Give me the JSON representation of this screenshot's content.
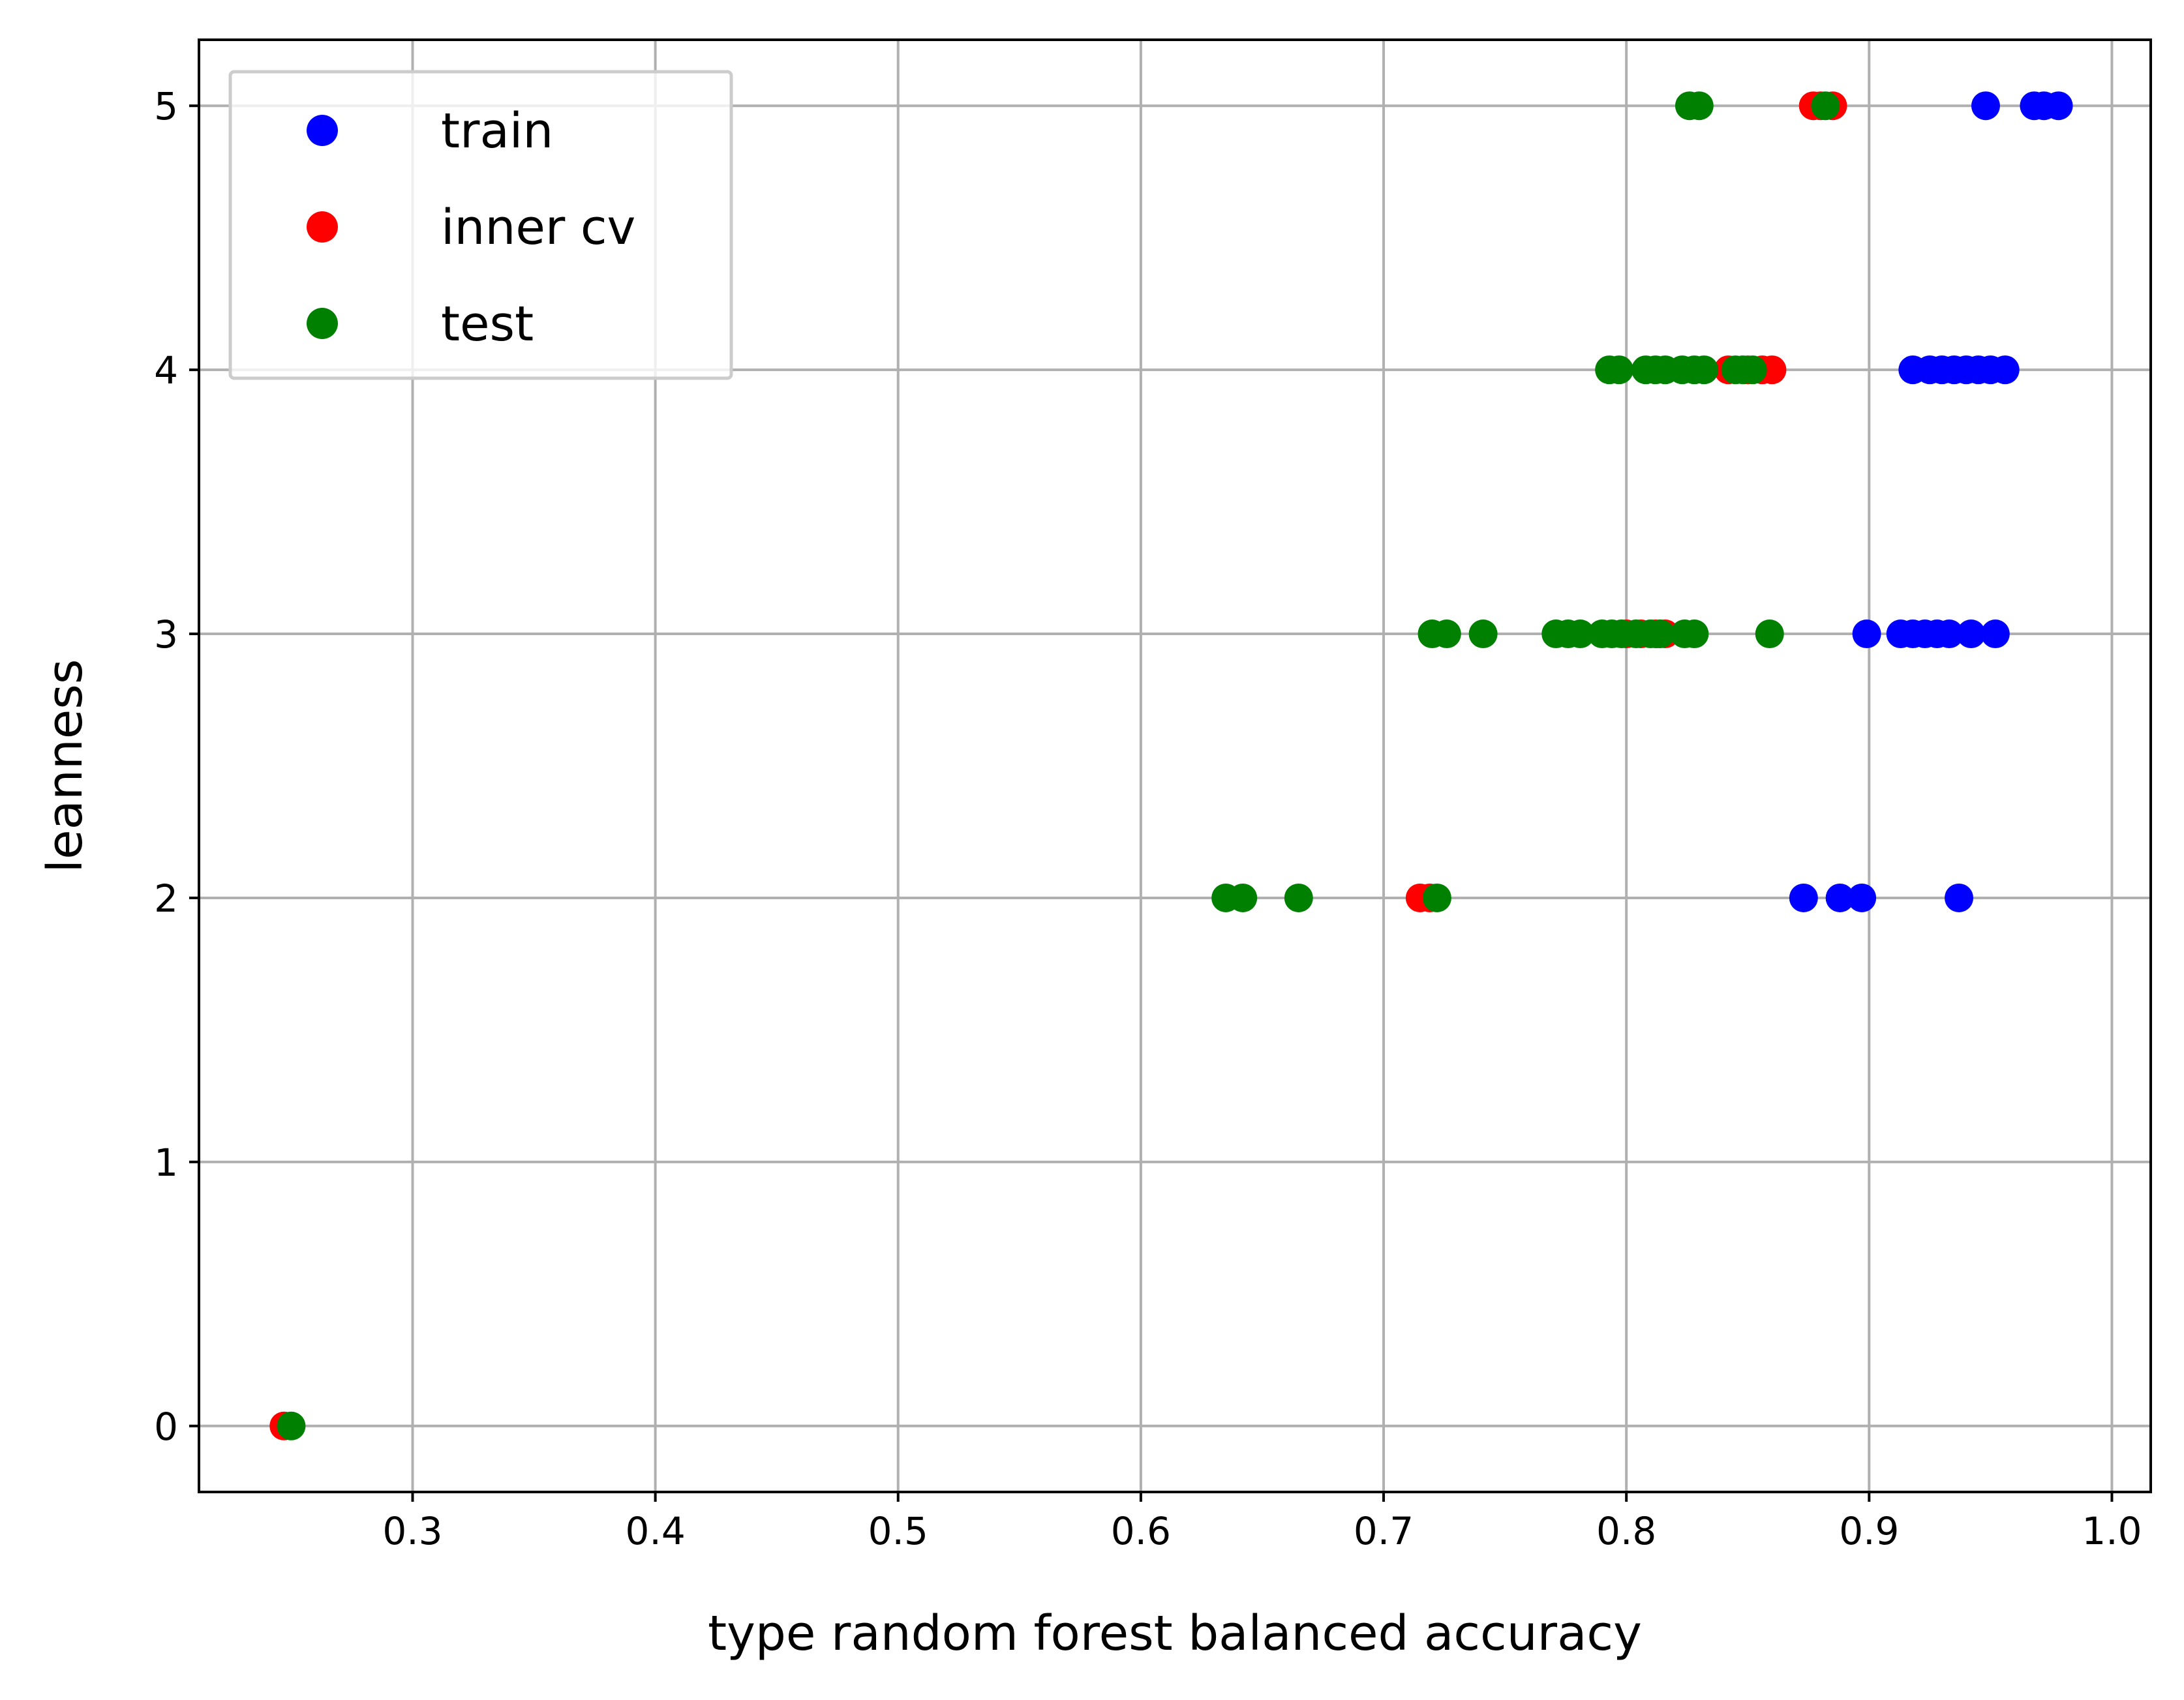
{
  "chart_data": {
    "type": "scatter",
    "title": "",
    "xlabel": "type random forest balanced accuracy",
    "ylabel": "leanness",
    "xlim": [
      0.212,
      1.016
    ],
    "ylim": [
      -0.25,
      5.25
    ],
    "xticks": [
      0.3,
      0.4,
      0.5,
      0.6,
      0.7,
      0.8,
      0.9,
      1.0
    ],
    "xtick_labels": [
      "0.3",
      "0.4",
      "0.5",
      "0.6",
      "0.7",
      "0.8",
      "0.9",
      "1.0"
    ],
    "yticks": [
      0,
      1,
      2,
      3,
      4,
      5
    ],
    "ytick_labels": [
      "0",
      "1",
      "2",
      "3",
      "4",
      "5"
    ],
    "grid": true,
    "legend_position": "top-left",
    "series": [
      {
        "name": "train",
        "color": "#0000ff",
        "points": [
          {
            "x": 0.948,
            "y": 5
          },
          {
            "x": 0.968,
            "y": 5
          },
          {
            "x": 0.972,
            "y": 5
          },
          {
            "x": 0.978,
            "y": 5
          },
          {
            "x": 0.918,
            "y": 4
          },
          {
            "x": 0.925,
            "y": 4
          },
          {
            "x": 0.93,
            "y": 4
          },
          {
            "x": 0.935,
            "y": 4
          },
          {
            "x": 0.94,
            "y": 4
          },
          {
            "x": 0.945,
            "y": 4
          },
          {
            "x": 0.95,
            "y": 4
          },
          {
            "x": 0.956,
            "y": 4
          },
          {
            "x": 0.899,
            "y": 3
          },
          {
            "x": 0.913,
            "y": 3
          },
          {
            "x": 0.918,
            "y": 3
          },
          {
            "x": 0.923,
            "y": 3
          },
          {
            "x": 0.928,
            "y": 3
          },
          {
            "x": 0.933,
            "y": 3
          },
          {
            "x": 0.942,
            "y": 3
          },
          {
            "x": 0.952,
            "y": 3
          },
          {
            "x": 0.873,
            "y": 2
          },
          {
            "x": 0.888,
            "y": 2
          },
          {
            "x": 0.897,
            "y": 2
          },
          {
            "x": 0.937,
            "y": 2
          }
        ]
      },
      {
        "name": "inner cv",
        "color": "#ff0000",
        "points": [
          {
            "x": 0.247,
            "y": 0
          },
          {
            "x": 0.877,
            "y": 5
          },
          {
            "x": 0.88,
            "y": 5
          },
          {
            "x": 0.885,
            "y": 5
          },
          {
            "x": 0.842,
            "y": 4
          },
          {
            "x": 0.85,
            "y": 4
          },
          {
            "x": 0.856,
            "y": 4
          },
          {
            "x": 0.86,
            "y": 4
          },
          {
            "x": 0.8,
            "y": 3
          },
          {
            "x": 0.806,
            "y": 3
          },
          {
            "x": 0.812,
            "y": 3
          },
          {
            "x": 0.816,
            "y": 3
          },
          {
            "x": 0.715,
            "y": 2
          },
          {
            "x": 0.719,
            "y": 2
          }
        ]
      },
      {
        "name": "test",
        "color": "#008000",
        "points": [
          {
            "x": 0.25,
            "y": 0
          },
          {
            "x": 0.826,
            "y": 5
          },
          {
            "x": 0.83,
            "y": 5
          },
          {
            "x": 0.882,
            "y": 5
          },
          {
            "x": 0.793,
            "y": 4
          },
          {
            "x": 0.797,
            "y": 4
          },
          {
            "x": 0.808,
            "y": 4
          },
          {
            "x": 0.812,
            "y": 4
          },
          {
            "x": 0.816,
            "y": 4
          },
          {
            "x": 0.823,
            "y": 4
          },
          {
            "x": 0.828,
            "y": 4
          },
          {
            "x": 0.832,
            "y": 4
          },
          {
            "x": 0.845,
            "y": 4
          },
          {
            "x": 0.848,
            "y": 4
          },
          {
            "x": 0.852,
            "y": 4
          },
          {
            "x": 0.72,
            "y": 3
          },
          {
            "x": 0.726,
            "y": 3
          },
          {
            "x": 0.741,
            "y": 3
          },
          {
            "x": 0.771,
            "y": 3
          },
          {
            "x": 0.776,
            "y": 3
          },
          {
            "x": 0.781,
            "y": 3
          },
          {
            "x": 0.79,
            "y": 3
          },
          {
            "x": 0.794,
            "y": 3
          },
          {
            "x": 0.798,
            "y": 3
          },
          {
            "x": 0.804,
            "y": 3
          },
          {
            "x": 0.81,
            "y": 3
          },
          {
            "x": 0.814,
            "y": 3
          },
          {
            "x": 0.824,
            "y": 3
          },
          {
            "x": 0.828,
            "y": 3
          },
          {
            "x": 0.859,
            "y": 3
          },
          {
            "x": 0.635,
            "y": 2
          },
          {
            "x": 0.642,
            "y": 2
          },
          {
            "x": 0.665,
            "y": 2
          },
          {
            "x": 0.722,
            "y": 2
          }
        ]
      }
    ]
  }
}
